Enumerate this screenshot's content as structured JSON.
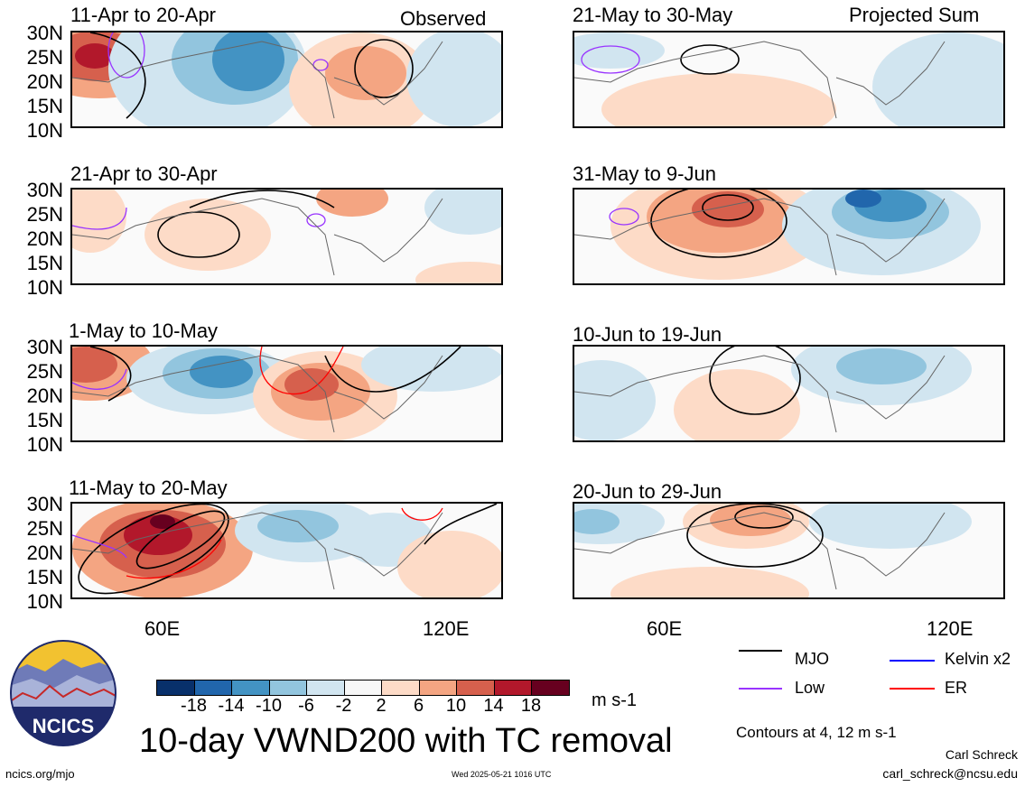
{
  "panels": [
    {
      "title": "11-Apr to 20-Apr",
      "corner": "Observed"
    },
    {
      "title": "21-May to 30-May",
      "corner": "Projected Sum"
    },
    {
      "title": "21-Apr to 30-Apr",
      "corner": ""
    },
    {
      "title": "31-May to 9-Jun",
      "corner": ""
    },
    {
      "title": "1-May to 10-May",
      "corner": ""
    },
    {
      "title": "10-Jun to 19-Jun",
      "corner": ""
    },
    {
      "title": "11-May to 20-May",
      "corner": ""
    },
    {
      "title": "20-Jun to 29-Jun",
      "corner": ""
    }
  ],
  "lat_labels": [
    "30N",
    "25N",
    "20N",
    "15N",
    "10N"
  ],
  "lon_labels": [
    "60E",
    "120E"
  ],
  "colorbar": {
    "ticks": [
      "-18",
      "-14",
      "-10",
      "-6",
      "-2",
      "2",
      "6",
      "10",
      "14",
      "18"
    ],
    "unit": "m s-1",
    "colors": [
      "#08306b",
      "#2166ac",
      "#4393c3",
      "#92c5de",
      "#d1e5f0",
      "#f7f7f7",
      "#fddbc7",
      "#f4a582",
      "#d6604d",
      "#b2182b",
      "#67001f"
    ]
  },
  "legend": {
    "mjo": "MJO",
    "kelvin": "Kelvin x2",
    "low": "Low",
    "er": "ER",
    "colors": {
      "mjo": "#000000",
      "kelvin": "#0000ff",
      "low": "#9933ff",
      "er": "#ff0000"
    }
  },
  "main_title": "10-day VWND200 with TC removal",
  "contours_note": "Contours at 4, 12 m s-1",
  "logo_text": "NCICS",
  "footer": {
    "left": "ncics.org/mjo",
    "center": "Wed 2025-05-21 1016 UTC",
    "author": "Carl Schreck",
    "email": "carl_schreck@ncsu.edu"
  }
}
